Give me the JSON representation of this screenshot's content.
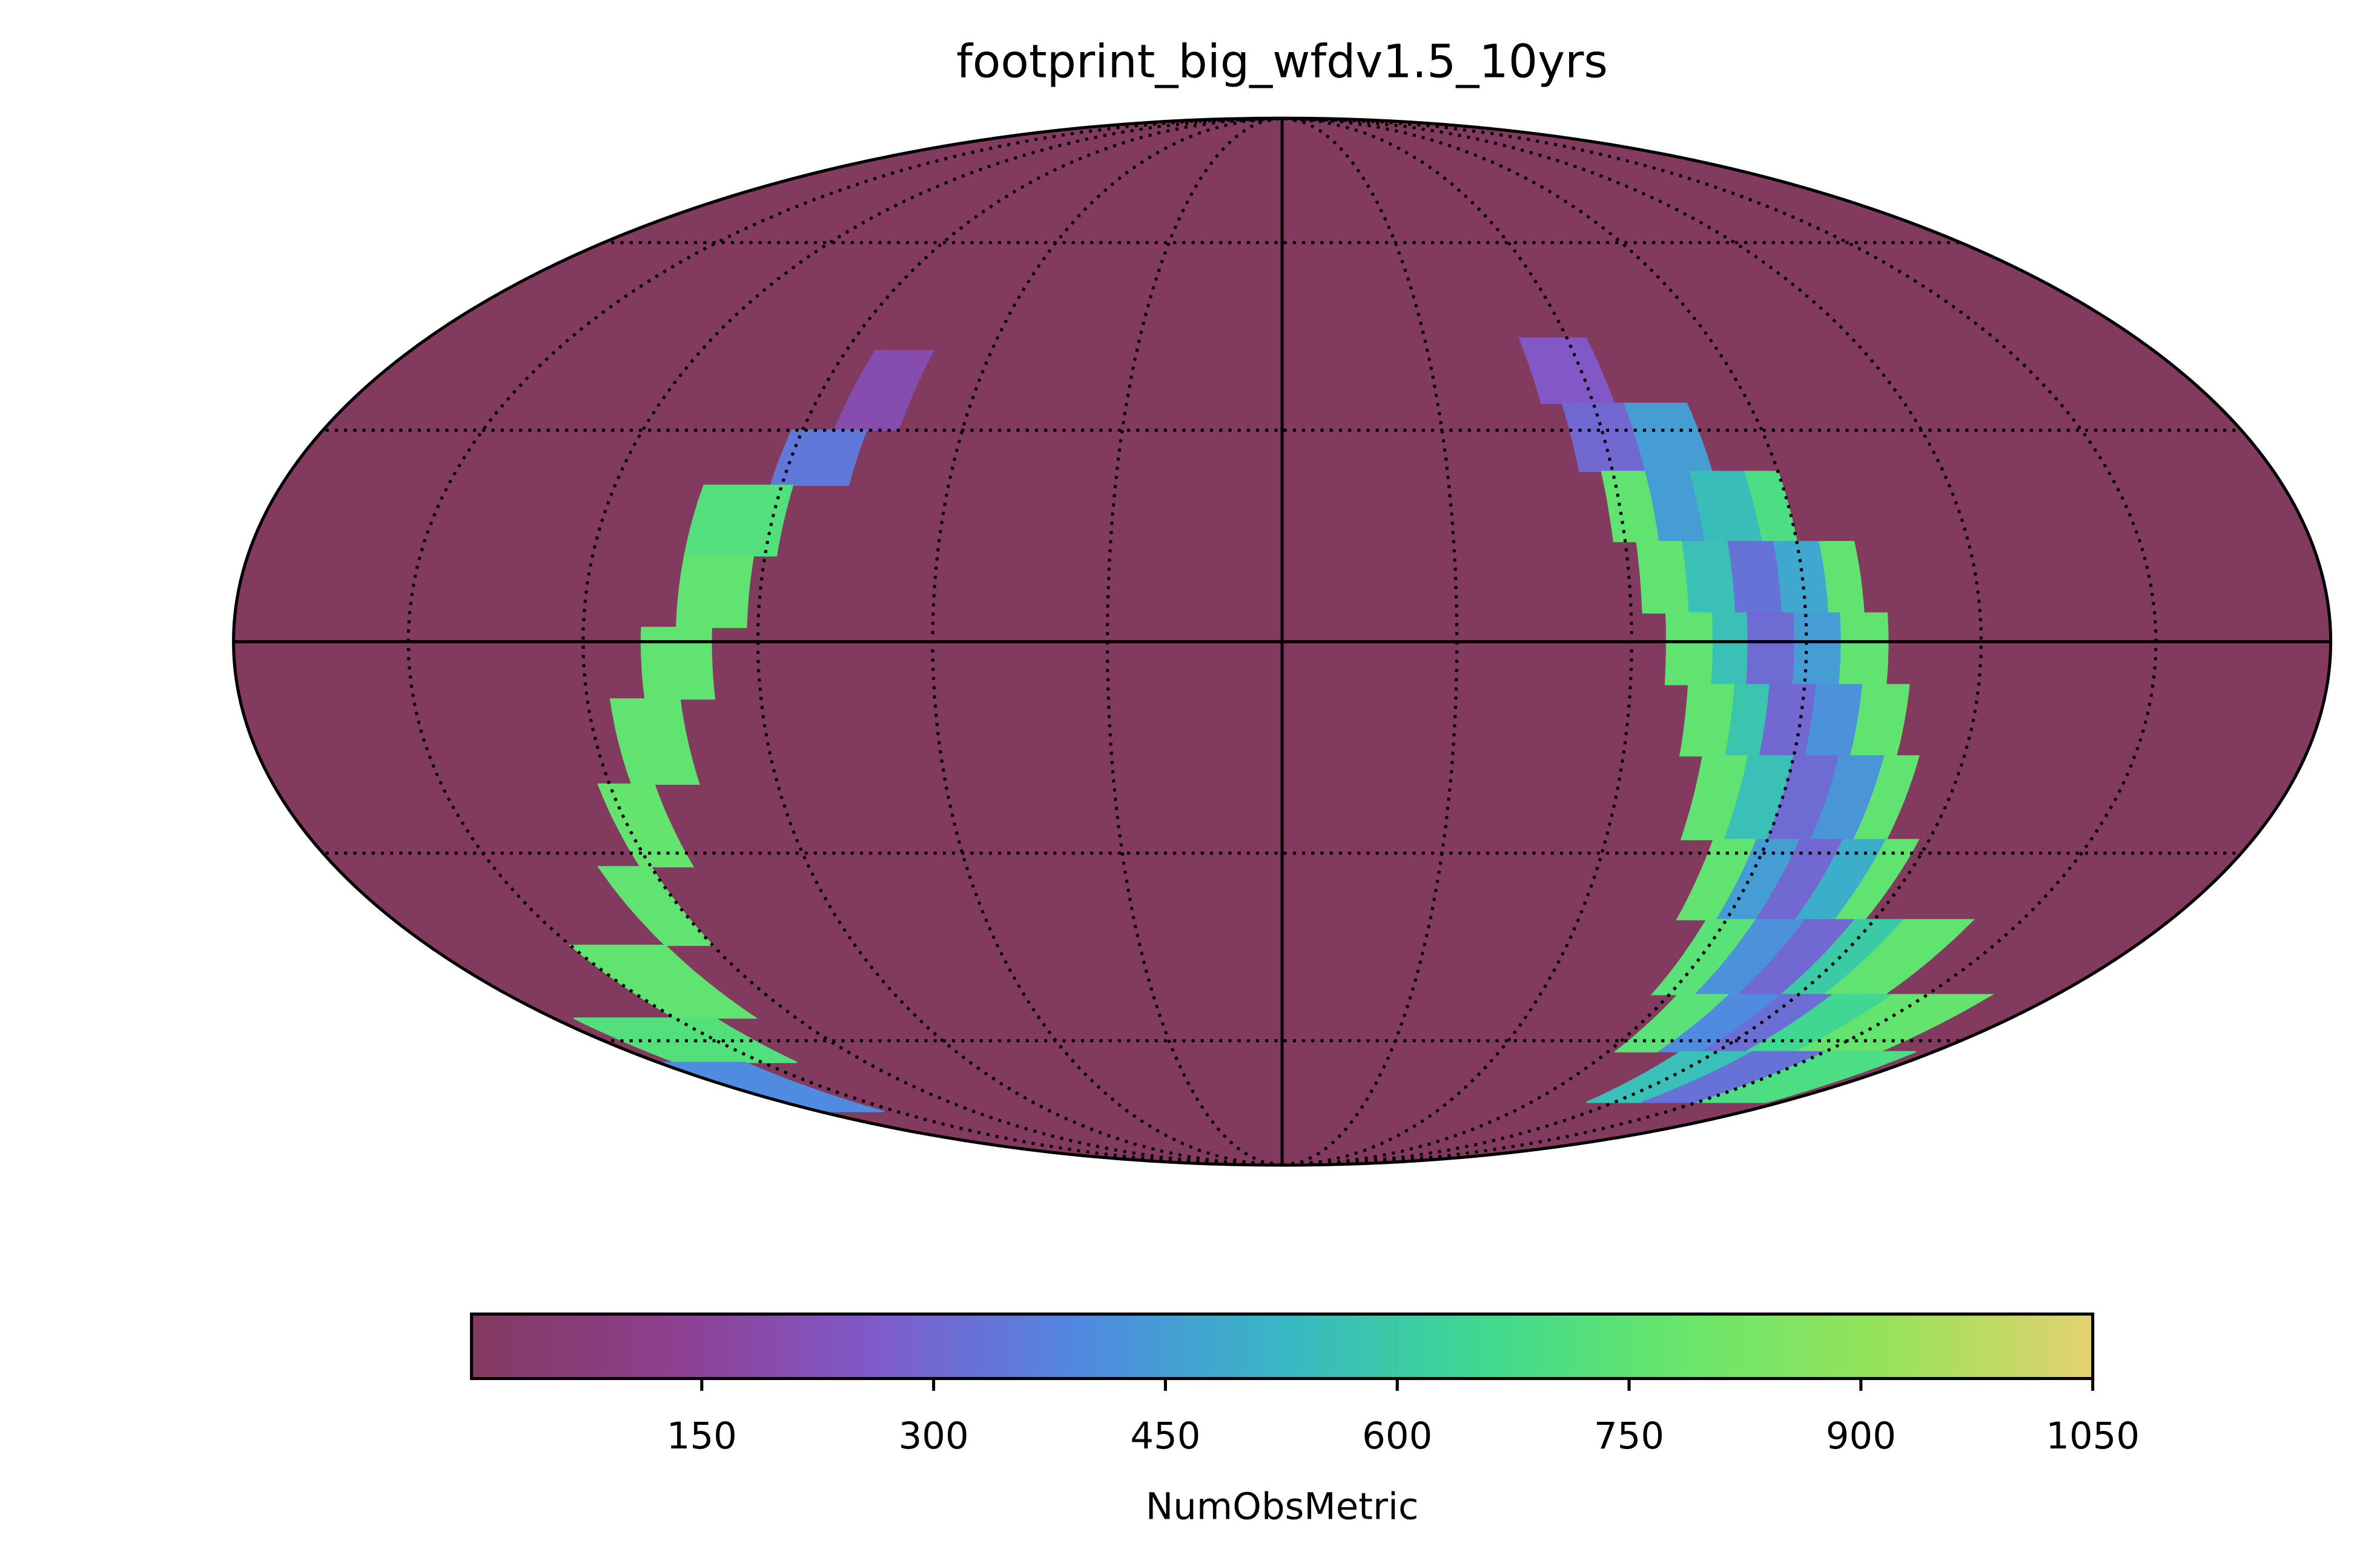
{
  "chart_data": {
    "type": "mollweide",
    "title": "footprint_big_wfdv1.5_10yrs",
    "colorbar_label": "NumObsMetric",
    "clim": [
      1,
      1050
    ],
    "cticks": [
      150,
      300,
      450,
      600,
      750,
      900,
      1050
    ],
    "colormap": [
      "#833a5f",
      "#8e3f8f",
      "#7f5bcb",
      "#5089e0",
      "#38b7c4",
      "#3fd98f",
      "#6ae66a",
      "#98e25a",
      "#e3d26f"
    ],
    "background_value": 0,
    "meridians": [
      -150,
      -120,
      -90,
      -60,
      -30,
      0,
      30,
      60,
      90,
      120,
      150
    ],
    "parallels": [
      -60,
      -30,
      0,
      30,
      60
    ],
    "cells": [
      {
        "lon": [
          -84,
          -72
        ],
        "lat": [
          30,
          42
        ],
        "value": 200
      },
      {
        "lon": [
          -92,
          -78
        ],
        "lat": [
          22,
          30
        ],
        "value": 350
      },
      {
        "lon": [
          -104,
          -88
        ],
        "lat": [
          12,
          22
        ],
        "value": 720
      },
      {
        "lon": [
          -104,
          -92
        ],
        "lat": [
          2,
          12
        ],
        "value": 760
      },
      {
        "lon": [
          -110,
          -98
        ],
        "lat": [
          -8,
          2
        ],
        "value": 760
      },
      {
        "lon": [
          -116,
          -104
        ],
        "lat": [
          -20,
          -8
        ],
        "value": 760
      },
      {
        "lon": [
          -122,
          -112
        ],
        "lat": [
          -32,
          -20
        ],
        "value": 770
      },
      {
        "lon": [
          -130,
          -120
        ],
        "lat": [
          -44,
          -32
        ],
        "value": 760
      },
      {
        "lon": [
          -150,
          -130
        ],
        "lat": [
          -56,
          -44
        ],
        "value": 760
      },
      {
        "lon": [
          -175,
          -140
        ],
        "lat": [
          -64,
          -56
        ],
        "value": 720
      },
      {
        "lon": [
          -180,
          -155
        ],
        "lat": [
          -74,
          -64
        ],
        "value": 400
      },
      {
        "lon": [
          50,
          64
        ],
        "lat": [
          34,
          44
        ],
        "value": 250
      },
      {
        "lon": [
          54,
          66
        ],
        "lat": [
          24,
          34
        ],
        "value": 300
      },
      {
        "lon": [
          66,
          78
        ],
        "lat": [
          24,
          34
        ],
        "value": 450
      },
      {
        "lon": [
          58,
          66
        ],
        "lat": [
          14,
          24
        ],
        "value": 760
      },
      {
        "lon": [
          66,
          74
        ],
        "lat": [
          14,
          24
        ],
        "value": 450
      },
      {
        "lon": [
          74,
          84
        ],
        "lat": [
          14,
          24
        ],
        "value": 550
      },
      {
        "lon": [
          84,
          90
        ],
        "lat": [
          14,
          24
        ],
        "value": 700
      },
      {
        "lon": [
          62,
          70
        ],
        "lat": [
          4,
          14
        ],
        "value": 760
      },
      {
        "lon": [
          70,
          78
        ],
        "lat": [
          4,
          14
        ],
        "value": 560
      },
      {
        "lon": [
          78,
          86
        ],
        "lat": [
          4,
          14
        ],
        "value": 330
      },
      {
        "lon": [
          86,
          94
        ],
        "lat": [
          4,
          14
        ],
        "value": 480
      },
      {
        "lon": [
          94,
          100
        ],
        "lat": [
          4,
          14
        ],
        "value": 760
      },
      {
        "lon": [
          66,
          74
        ],
        "lat": [
          -6,
          4
        ],
        "value": 760
      },
      {
        "lon": [
          74,
          80
        ],
        "lat": [
          -6,
          4
        ],
        "value": 560
      },
      {
        "lon": [
          80,
          88
        ],
        "lat": [
          -6,
          4
        ],
        "value": 310
      },
      {
        "lon": [
          88,
          96
        ],
        "lat": [
          -6,
          4
        ],
        "value": 450
      },
      {
        "lon": [
          96,
          104
        ],
        "lat": [
          -6,
          4
        ],
        "value": 760
      },
      {
        "lon": [
          70,
          78
        ],
        "lat": [
          -16,
          -6
        ],
        "value": 760
      },
      {
        "lon": [
          78,
          84
        ],
        "lat": [
          -16,
          -6
        ],
        "value": 580
      },
      {
        "lon": [
          84,
          92
        ],
        "lat": [
          -16,
          -6
        ],
        "value": 300
      },
      {
        "lon": [
          92,
          100
        ],
        "lat": [
          -16,
          -6
        ],
        "value": 420
      },
      {
        "lon": [
          100,
          108
        ],
        "lat": [
          -16,
          -6
        ],
        "value": 760
      },
      {
        "lon": [
          74,
          82
        ],
        "lat": [
          -28,
          -16
        ],
        "value": 760
      },
      {
        "lon": [
          82,
          90
        ],
        "lat": [
          -28,
          -16
        ],
        "value": 560
      },
      {
        "lon": [
          90,
          98
        ],
        "lat": [
          -28,
          -16
        ],
        "value": 310
      },
      {
        "lon": [
          98,
          106
        ],
        "lat": [
          -28,
          -16
        ],
        "value": 430
      },
      {
        "lon": [
          106,
          112
        ],
        "lat": [
          -28,
          -16
        ],
        "value": 760
      },
      {
        "lon": [
          80,
          88
        ],
        "lat": [
          -40,
          -28
        ],
        "value": 760
      },
      {
        "lon": [
          88,
          96
        ],
        "lat": [
          -40,
          -28
        ],
        "value": 450
      },
      {
        "lon": [
          96,
          104
        ],
        "lat": [
          -40,
          -28
        ],
        "value": 300
      },
      {
        "lon": [
          104,
          112
        ],
        "lat": [
          -40,
          -28
        ],
        "value": 500
      },
      {
        "lon": [
          112,
          118
        ],
        "lat": [
          -40,
          -28
        ],
        "value": 760
      },
      {
        "lon": [
          86,
          96
        ],
        "lat": [
          -52,
          -40
        ],
        "value": 740
      },
      {
        "lon": [
          96,
          106
        ],
        "lat": [
          -52,
          -40
        ],
        "value": 420
      },
      {
        "lon": [
          106,
          116
        ],
        "lat": [
          -52,
          -40
        ],
        "value": 300
      },
      {
        "lon": [
          116,
          126
        ],
        "lat": [
          -52,
          -40
        ],
        "value": 600
      },
      {
        "lon": [
          126,
          140
        ],
        "lat": [
          -52,
          -40
        ],
        "value": 760
      },
      {
        "lon": [
          92,
          104
        ],
        "lat": [
          -62,
          -52
        ],
        "value": 740
      },
      {
        "lon": [
          104,
          116
        ],
        "lat": [
          -62,
          -52
        ],
        "value": 400
      },
      {
        "lon": [
          116,
          128
        ],
        "lat": [
          -62,
          -52
        ],
        "value": 320
      },
      {
        "lon": [
          128,
          142
        ],
        "lat": [
          -62,
          -52
        ],
        "value": 650
      },
      {
        "lon": [
          142,
          165
        ],
        "lat": [
          -62,
          -52
        ],
        "value": 770
      },
      {
        "lon": [
          110,
          130
        ],
        "lat": [
          -72,
          -62
        ],
        "value": 560
      },
      {
        "lon": [
          130,
          150
        ],
        "lat": [
          -72,
          -62
        ],
        "value": 330
      },
      {
        "lon": [
          150,
          175
        ],
        "lat": [
          -72,
          -62
        ],
        "value": 700
      }
    ]
  }
}
